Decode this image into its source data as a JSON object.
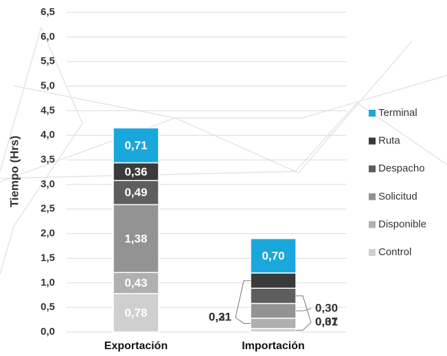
{
  "chart_data": {
    "type": "stacked_bar",
    "y_label": "Tiempo (Hrs)",
    "categories": [
      "Exportación",
      "Importación"
    ],
    "series": [
      {
        "name": "Control",
        "color": "#cfcfcf",
        "values": [
          0.78,
          0.07
        ],
        "value_labels": [
          "0,78",
          "0,07"
        ]
      },
      {
        "name": "Disponible",
        "color": "#b0b0b0",
        "values": [
          0.43,
          0.21
        ],
        "value_labels": [
          "0,43",
          "0,21"
        ]
      },
      {
        "name": "Solicitud",
        "color": "#939393",
        "values": [
          1.38,
          0.3
        ],
        "value_labels": [
          "1,38",
          "0,30"
        ]
      },
      {
        "name": "Despacho",
        "color": "#5e5e5e",
        "values": [
          0.49,
          0.31
        ],
        "value_labels": [
          "0,49",
          "0,31"
        ]
      },
      {
        "name": "Ruta",
        "color": "#3a3a3a",
        "values": [
          0.36,
          0.31
        ],
        "value_labels": [
          "0,36",
          "0,31"
        ]
      },
      {
        "name": "Terminal",
        "color": "#1aa7dc",
        "values": [
          0.71,
          0.7
        ],
        "value_labels": [
          "0,71",
          "0,70"
        ]
      }
    ],
    "ylim": [
      0,
      6.5
    ],
    "yticks": [
      {
        "value": 0,
        "label": "0,0"
      },
      {
        "value": 0.5,
        "label": "0,5"
      },
      {
        "value": 1,
        "label": "1,0"
      },
      {
        "value": 1.5,
        "label": "1,5"
      },
      {
        "value": 2,
        "label": "2,0"
      },
      {
        "value": 2.5,
        "label": "2,5"
      },
      {
        "value": 3,
        "label": "3,0"
      },
      {
        "value": 3.5,
        "label": "3,5"
      },
      {
        "value": 4,
        "label": "4,0"
      },
      {
        "value": 4.5,
        "label": "4,5"
      },
      {
        "value": 5,
        "label": "5,0"
      },
      {
        "value": 5.5,
        "label": "5,5"
      },
      {
        "value": 6,
        "label": "6,0"
      },
      {
        "value": 6.5,
        "label": "6,5"
      }
    ],
    "grid": true,
    "legend": "right"
  }
}
